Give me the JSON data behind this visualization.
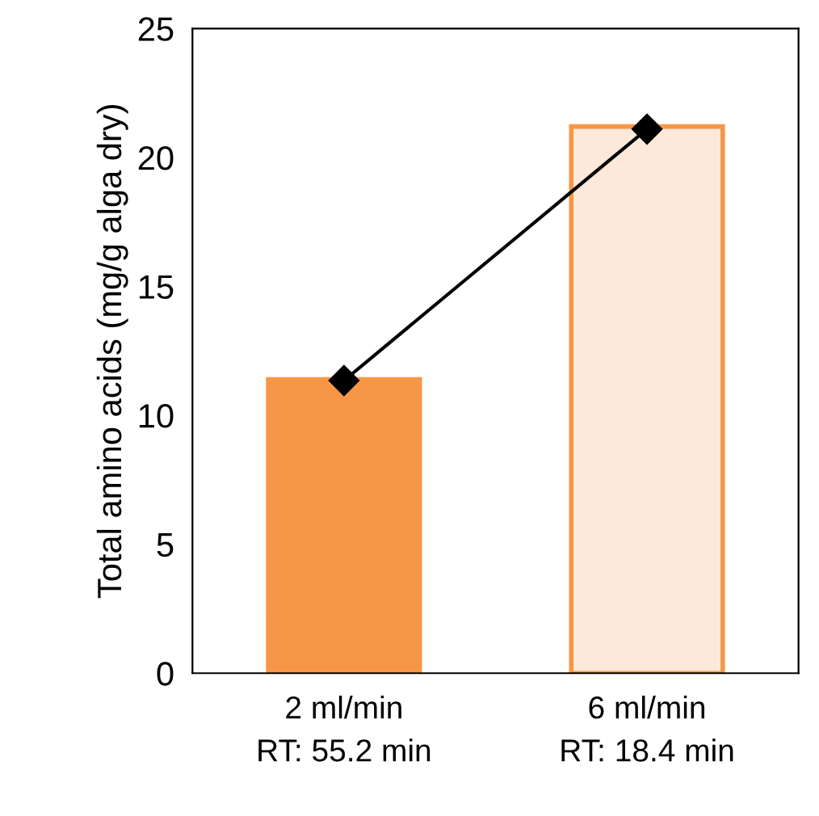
{
  "chart_data": {
    "type": "bar",
    "ylabel": "Total amino acids (mg/g alga dry)",
    "categories": [
      "2 ml/min\nRT: 55.2 min",
      "6 ml/min\nRT: 18.4 min"
    ],
    "series": [
      {
        "colors": [
          "#f79646",
          "#fde9d9"
        ],
        "values": [
          11.4,
          21.2
        ]
      },
      {
        "type": "line",
        "color": "#000000",
        "marker": "diamond",
        "values": [
          11.35,
          21.1
        ]
      }
    ],
    "ylim": [
      0,
      25
    ],
    "yticks": [
      0,
      5,
      10,
      15,
      20,
      25
    ],
    "grid": false,
    "legend": false
  }
}
